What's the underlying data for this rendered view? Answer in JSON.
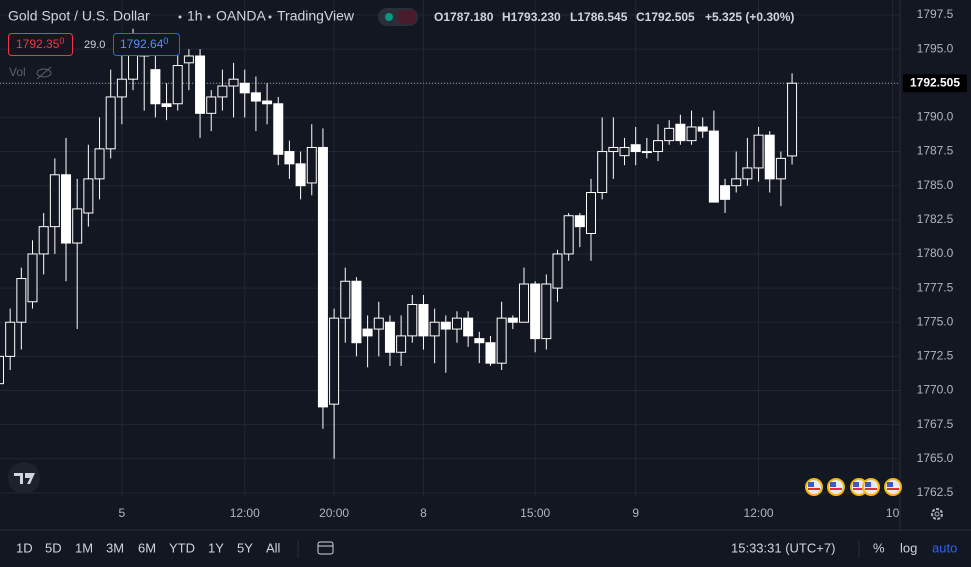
{
  "header": {
    "symbol": "Gold Spot / U.S. Dollar",
    "interval": "1h",
    "exchange": "OANDA",
    "source": "TradingView",
    "ohlc": [
      {
        "key": "O",
        "value": "1787.180"
      },
      {
        "key": "H",
        "value": "1793.230"
      },
      {
        "key": "L",
        "value": "1786.545"
      },
      {
        "key": "C",
        "value": "1792.505"
      }
    ],
    "change": "+5.325 (+0.30%)",
    "sell": {
      "price": "1792.35",
      "pip": "0"
    },
    "spread": "29.0",
    "buy": {
      "price": "1792.64",
      "pip": "0"
    },
    "volume_label": "Vol"
  },
  "chart_data": {
    "type": "candlestick",
    "categories": [
      null,
      null,
      null,
      null,
      null,
      null,
      null,
      null,
      null,
      null,
      null,
      "5",
      null,
      null,
      null,
      null,
      null,
      null,
      null,
      null,
      null,
      null,
      "12:00",
      null,
      null,
      null,
      null,
      null,
      null,
      null,
      "20:00",
      null,
      null,
      null,
      null,
      null,
      null,
      null,
      "8",
      null,
      null,
      null,
      null,
      null,
      null,
      null,
      null,
      null,
      "15:00",
      null,
      null,
      null,
      null,
      null,
      null,
      null,
      null,
      "9",
      null,
      null,
      null,
      null,
      null,
      null,
      null,
      null,
      null,
      null,
      "12:00",
      null,
      null,
      null,
      null,
      null,
      null,
      null,
      null,
      null,
      null,
      null,
      "10"
    ],
    "open": [
      1770.5,
      1772.5,
      1775,
      1776.5,
      1780,
      1782,
      1785.8,
      1780.8,
      1783,
      1785.5,
      1787.7,
      1791.5,
      1792.8,
      1795.2,
      1793.5,
      1791,
      1791,
      1794,
      1794.5,
      1790.3,
      1791.5,
      1792.3,
      1792.5,
      1791.8,
      1791.2,
      1791,
      1787.5,
      1786.6,
      1785.2,
      1787.8,
      1769,
      1775.3,
      1778,
      1774.5,
      1774.5,
      1775,
      1772.8,
      1774,
      1776.3,
      1774,
      1775,
      1774.5,
      1775.3,
      1773.8,
      1773.5,
      1772,
      1775.3,
      1775,
      1777.8,
      1773.8,
      1777.5,
      1780,
      1782.8,
      1781.5,
      1784.5,
      1787.5,
      1787.2,
      1788,
      1787.5,
      1787.5,
      1788.3,
      1789.5,
      1788.3,
      1789.3,
      1789,
      1785,
      1785,
      1785.5,
      1786.3,
      1788.7,
      1785.5,
      1787.18,
      null,
      null,
      null,
      null,
      null,
      null,
      null,
      null,
      null
    ],
    "high": [
      1773.5,
      1776,
      1779,
      1781,
      1783,
      1787,
      1788.5,
      1785.5,
      1788,
      1790,
      1793.5,
      1795,
      1796.5,
      1795.5,
      1794.5,
      1792.5,
      1794.8,
      1795,
      1795,
      1792,
      1793.5,
      1794,
      1793.5,
      1793,
      1792.5,
      1791.5,
      1788.3,
      1787.5,
      1789.5,
      1789.2,
      1776,
      1779,
      1778.3,
      1775.5,
      1776.5,
      1775.5,
      1775.5,
      1777,
      1777,
      1776,
      1775.5,
      1775.8,
      1775.8,
      1774.3,
      1774,
      1776.5,
      1775.5,
      1779,
      1778,
      1778.5,
      1780.3,
      1783,
      1783,
      1785.5,
      1790,
      1790,
      1788.5,
      1789.3,
      1788.5,
      1789.5,
      1789.8,
      1790.2,
      1790.5,
      1790,
      1790.5,
      1785.5,
      1787.5,
      1788.5,
      1789.3,
      1789,
      1787.5,
      1793.23,
      null,
      null,
      null,
      null,
      null,
      null,
      null,
      null,
      null
    ],
    "low": [
      1769.8,
      1771.5,
      1773,
      1776,
      1778.5,
      1780,
      1778,
      1774.5,
      1782,
      1784,
      1787,
      1789.5,
      1792,
      1790.5,
      1790,
      1789.8,
      1790.5,
      1792,
      1788.5,
      1789,
      1790.5,
      1790,
      1790,
      1789,
      1789.5,
      1786.5,
      1785.5,
      1784,
      1784.3,
      1767.2,
      1765,
      1773.5,
      1772.5,
      1771.7,
      1772.5,
      1771.8,
      1771.8,
      1773.5,
      1773,
      1772,
      1771.3,
      1773.5,
      1773.2,
      1772,
      1771.8,
      1771.5,
      1774.5,
      1775,
      1772.8,
      1773,
      1776.5,
      1779.5,
      1780.5,
      1779.5,
      1784,
      1785.5,
      1786.5,
      1786.5,
      1787,
      1786.8,
      1788,
      1788,
      1788,
      1788.5,
      1783.8,
      1783,
      1784.5,
      1785,
      1785.3,
      1784.5,
      1783.5,
      1786.545,
      null,
      null,
      null,
      null,
      null,
      null,
      null,
      null,
      null
    ],
    "close": [
      1772.5,
      1775,
      1778.2,
      1780,
      1782,
      1785.8,
      1780.8,
      1783.3,
      1785.5,
      1787.7,
      1791.5,
      1792.8,
      1795.5,
      1794.5,
      1791,
      1790.8,
      1793.8,
      1794.5,
      1790.3,
      1791.5,
      1792.3,
      1792.8,
      1791.8,
      1791.2,
      1791,
      1787.3,
      1786.6,
      1785,
      1787.8,
      1768.8,
      1775.3,
      1778,
      1773.5,
      1774,
      1775.3,
      1772.8,
      1774,
      1776.3,
      1774,
      1775,
      1774.5,
      1775.3,
      1774,
      1773.5,
      1772,
      1775.3,
      1775,
      1777.8,
      1773.8,
      1777.8,
      1780,
      1782.8,
      1782,
      1784.5,
      1787.5,
      1787.8,
      1787.8,
      1787.5,
      1787.5,
      1788.3,
      1789.2,
      1788.3,
      1789.3,
      1789,
      1783.8,
      1784,
      1785.5,
      1786.3,
      1788.7,
      1785.5,
      1787,
      1792.505,
      null,
      null,
      null,
      null,
      null,
      null,
      null,
      null,
      null
    ],
    "ylim": [
      1762.2,
      1798.6
    ],
    "yticks": [
      1762.5,
      {
        "value": 1765,
        "label": "1765.0"
      },
      1767.5,
      {
        "value": 1770,
        "label": "1770.0"
      },
      1772.5,
      {
        "value": 1775,
        "label": "1775.0"
      },
      1777.5,
      {
        "value": 1780,
        "label": "1780.0"
      },
      1782.5,
      {
        "value": 1785,
        "label": "1785.0"
      },
      1787.5,
      {
        "value": 1790,
        "label": "1790.0"
      },
      1792.5,
      {
        "value": 1795,
        "label": "1795.0"
      },
      1797.5
    ],
    "grid": true,
    "up_fill": "#131722",
    "down_fill": "#ffffff",
    "wick_color": "#ffffff",
    "grid_color": "#232733"
  },
  "toolbar": {
    "timeframes": [
      "1D",
      "5D",
      "1M",
      "3M",
      "6M",
      "YTD",
      "1Y",
      "5Y",
      "All"
    ],
    "clock": "15:33:31 (UTC+7)",
    "scale_options": [
      "%",
      "log",
      "auto"
    ]
  }
}
